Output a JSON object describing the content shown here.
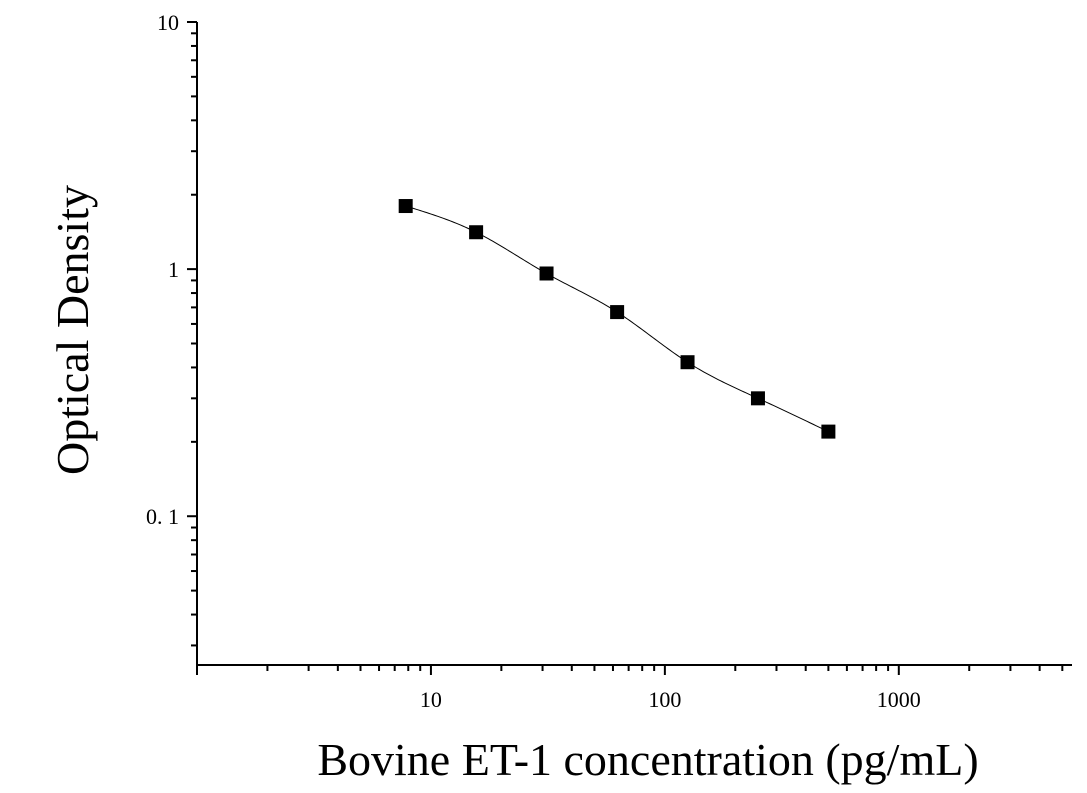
{
  "chart_data": {
    "type": "scatter",
    "title": "",
    "xlabel": "Bovine ET-1 concentration (pg/mL)",
    "ylabel": "Optical Density",
    "x_scale": "log",
    "y_scale": "log",
    "xlim": [
      1,
      5500
    ],
    "ylim": [
      0.025,
      10
    ],
    "x_tick_values": [
      10,
      100,
      1000
    ],
    "x_tick_labels": [
      "10",
      "100",
      "1000"
    ],
    "y_tick_values": [
      0.1,
      1,
      10
    ],
    "y_tick_labels": [
      "0. 1",
      "1",
      "10"
    ],
    "grid": false,
    "legend": "none",
    "marker": "square",
    "color": "#000000",
    "series": [
      {
        "x": [
          7.8,
          15.6,
          31.2,
          62.5,
          125,
          250,
          500
        ],
        "y": [
          1.8,
          1.41,
          0.96,
          0.67,
          0.42,
          0.3,
          0.22
        ],
        "fit_curve": true
      }
    ]
  }
}
